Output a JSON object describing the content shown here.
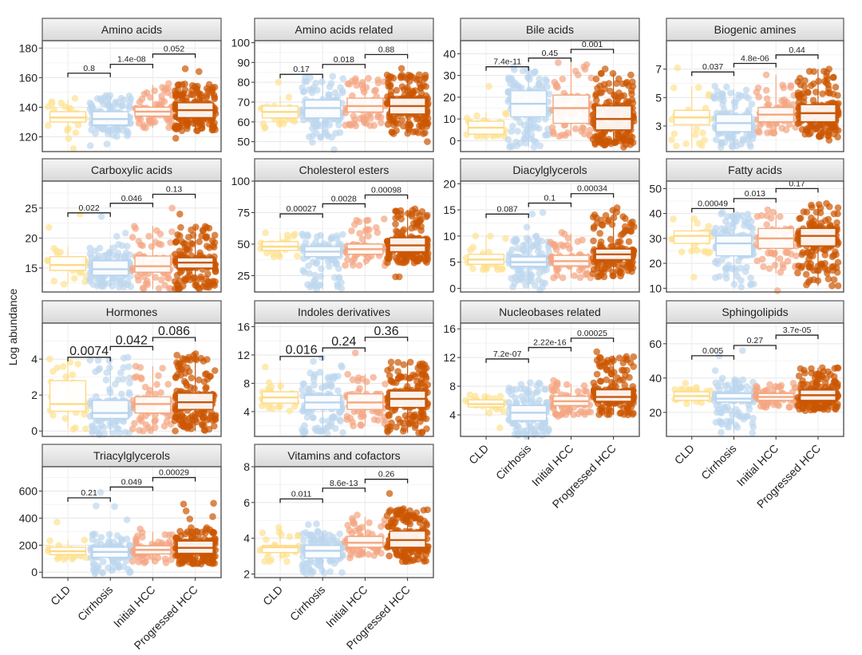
{
  "chart_data": {
    "type": "boxplot",
    "title": "",
    "ylabel": "Log abundance",
    "xlabel": "",
    "groups": [
      "CLD",
      "Cirrhosis",
      "Initial HCC",
      "Progressed HCC"
    ],
    "group_colors": [
      "#fee391",
      "#bdd7ee",
      "#f4a582",
      "#cc5500"
    ],
    "grid": true,
    "panels": [
      {
        "title": "Amino acids",
        "ylim": [
          110,
          185
        ],
        "yticks": [
          120,
          140,
          160,
          180
        ],
        "boxes": [
          {
            "q1": 130,
            "median": 133,
            "q3": 137,
            "min": 122,
            "max": 145
          },
          {
            "q1": 128,
            "median": 132,
            "q3": 137,
            "min": 120,
            "max": 148
          },
          {
            "q1": 134,
            "median": 137,
            "q3": 140,
            "min": 126,
            "max": 155
          },
          {
            "q1": 133,
            "median": 138,
            "q3": 143,
            "min": 124,
            "max": 156
          }
        ],
        "range": [
          [
            112,
            146
          ],
          [
            114,
            148
          ],
          [
            126,
            156
          ],
          [
            119,
            166
          ]
        ],
        "pvalues": [
          {
            "label": "0.8",
            "level": 163
          },
          {
            "label": "1.4e-08",
            "level": 169
          },
          {
            "label": "0.052",
            "level": 176
          }
        ]
      },
      {
        "title": "Amino acids related",
        "ylim": [
          45,
          101
        ],
        "yticks": [
          50,
          60,
          70,
          80,
          90,
          100
        ],
        "boxes": [
          {
            "q1": 62,
            "median": 65,
            "q3": 68,
            "min": 57,
            "max": 73
          },
          {
            "q1": 62,
            "median": 67,
            "q3": 71,
            "min": 52,
            "max": 83
          },
          {
            "q1": 65,
            "median": 68,
            "q3": 72,
            "min": 58,
            "max": 82
          },
          {
            "q1": 64,
            "median": 68,
            "q3": 72,
            "min": 54,
            "max": 84
          }
        ],
        "range": [
          [
            57,
            80
          ],
          [
            46,
            83
          ],
          [
            58,
            82
          ],
          [
            50,
            87
          ]
        ],
        "pvalues": [
          {
            "label": "0.17",
            "level": 84
          },
          {
            "label": "0.018",
            "level": 89
          },
          {
            "label": "0.88",
            "level": 94
          }
        ]
      },
      {
        "title": "Bile acids",
        "ylim": [
          -5,
          46
        ],
        "yticks": [
          0,
          10,
          20,
          30,
          40
        ],
        "boxes": [
          {
            "q1": 3,
            "median": 6,
            "q3": 9,
            "min": 2,
            "max": 13
          },
          {
            "q1": 11,
            "median": 17,
            "q3": 23,
            "min": -3,
            "max": 33
          },
          {
            "q1": 8,
            "median": 15,
            "q3": 21,
            "min": 2,
            "max": 36
          },
          {
            "q1": 5,
            "median": 10,
            "q3": 16,
            "min": -2,
            "max": 31
          }
        ],
        "range": [
          [
            2,
            25
          ],
          [
            -3,
            34
          ],
          [
            2,
            35
          ],
          [
            -3,
            33
          ]
        ],
        "pvalues": [
          {
            "label": "7.4e-11",
            "level": 34
          },
          {
            "label": "0.45",
            "level": 38
          },
          {
            "label": "0.001",
            "level": 42
          }
        ]
      },
      {
        "title": "Biogenic amines",
        "ylim": [
          1.2,
          9
        ],
        "yticks": [
          3,
          5,
          7
        ],
        "boxes": [
          {
            "q1": 3.1,
            "median": 3.6,
            "q3": 4.1,
            "min": 1.5,
            "max": 5.8
          },
          {
            "q1": 2.6,
            "median": 3.2,
            "q3": 3.8,
            "min": 1.5,
            "max": 5.6
          },
          {
            "q1": 3.3,
            "median": 3.8,
            "q3": 4.3,
            "min": 2.5,
            "max": 6.6
          },
          {
            "q1": 3.3,
            "median": 3.9,
            "q3": 4.5,
            "min": 2.2,
            "max": 7.0
          }
        ],
        "range": [
          [
            1.6,
            7.1
          ],
          [
            1.5,
            5.8
          ],
          [
            2.5,
            6.6
          ],
          [
            2.0,
            7.0
          ]
        ],
        "pvalues": [
          {
            "label": "0.037",
            "level": 6.8
          },
          {
            "label": "4.8e-06",
            "level": 7.4
          },
          {
            "label": "0.44",
            "level": 8.0
          }
        ]
      },
      {
        "title": "Carboxylic acids",
        "ylim": [
          11,
          29.5
        ],
        "yticks": [
          15,
          20,
          25
        ],
        "boxes": [
          {
            "q1": 14.6,
            "median": 15.5,
            "q3": 16.9,
            "min": 12.3,
            "max": 18.5
          },
          {
            "q1": 13.8,
            "median": 14.8,
            "q3": 16.2,
            "min": 11.8,
            "max": 18.8
          },
          {
            "q1": 14.3,
            "median": 15.3,
            "q3": 17.0,
            "min": 11.5,
            "max": 22
          },
          {
            "q1": 15.0,
            "median": 15.9,
            "q3": 16.7,
            "min": 11.5,
            "max": 22
          }
        ],
        "range": [
          [
            12.3,
            24
          ],
          [
            11.8,
            23.6
          ],
          [
            11.5,
            25
          ],
          [
            11.5,
            24
          ]
        ],
        "pvalues": [
          {
            "label": "0.022",
            "level": 24.2
          },
          {
            "label": "0.046",
            "level": 25.8
          },
          {
            "label": "0.13",
            "level": 27.3
          }
        ]
      },
      {
        "title": "Cholesterol esters",
        "ylim": [
          12,
          100
        ],
        "yticks": [
          25,
          50,
          75,
          100
        ],
        "boxes": [
          {
            "q1": 45,
            "median": 48,
            "q3": 52,
            "min": 40,
            "max": 59
          },
          {
            "q1": 40,
            "median": 44,
            "q3": 48,
            "min": 14,
            "max": 58
          },
          {
            "q1": 42,
            "median": 46,
            "q3": 50,
            "min": 33,
            "max": 70
          },
          {
            "q1": 44,
            "median": 49,
            "q3": 55,
            "min": 35,
            "max": 77
          }
        ],
        "range": [
          [
            40,
            59
          ],
          [
            14,
            58
          ],
          [
            33,
            70
          ],
          [
            24,
            78
          ]
        ],
        "pvalues": [
          {
            "label": "0.00027",
            "level": 74
          },
          {
            "label": "0.0028",
            "level": 82
          },
          {
            "label": "0.00098",
            "level": 89
          }
        ]
      },
      {
        "title": "Diacylglycerols",
        "ylim": [
          -0.7,
          20.5
        ],
        "yticks": [
          0,
          5,
          10,
          15,
          20
        ],
        "boxes": [
          {
            "q1": 4.6,
            "median": 5.5,
            "q3": 6.5,
            "min": 3.6,
            "max": 10
          },
          {
            "q1": 4.2,
            "median": 5.0,
            "q3": 6.0,
            "min": 0,
            "max": 10
          },
          {
            "q1": 4.3,
            "median": 5.2,
            "q3": 6.3,
            "min": 2,
            "max": 10.5
          },
          {
            "q1": 5.5,
            "median": 6.5,
            "q3": 7.5,
            "min": 2.2,
            "max": 15
          }
        ],
        "range": [
          [
            3.6,
            10
          ],
          [
            -0.3,
            14.5
          ],
          [
            2,
            10.7
          ],
          [
            2.2,
            15.4
          ]
        ],
        "pvalues": [
          {
            "label": "0.087",
            "level": 14.2
          },
          {
            "label": "0.1",
            "level": 16.3
          },
          {
            "label": "0.00034",
            "level": 18.1
          }
        ]
      },
      {
        "title": "Fatty acids",
        "ylim": [
          8.5,
          53
        ],
        "yticks": [
          10,
          20,
          30,
          40,
          50
        ],
        "boxes": [
          {
            "q1": 28,
            "median": 31,
            "q3": 33,
            "min": 24,
            "max": 38
          },
          {
            "q1": 23,
            "median": 28,
            "q3": 31,
            "min": 11,
            "max": 40
          },
          {
            "q1": 26,
            "median": 30,
            "q3": 34,
            "min": 16,
            "max": 41
          },
          {
            "q1": 27,
            "median": 31,
            "q3": 34,
            "min": 11,
            "max": 44
          }
        ],
        "range": [
          [
            14.5,
            38
          ],
          [
            10.5,
            40.5
          ],
          [
            9,
            41.5
          ],
          [
            11,
            44
          ]
        ],
        "pvalues": [
          {
            "label": "0.00049",
            "level": 42
          },
          {
            "label": "0.013",
            "level": 46
          },
          {
            "label": "0.17",
            "level": 50
          }
        ]
      },
      {
        "title": "Hormones",
        "ylim": [
          -0.3,
          6.0
        ],
        "yticks": [
          0,
          2,
          4
        ],
        "boxes": [
          {
            "q1": 1.1,
            "median": 1.5,
            "q3": 2.8,
            "min": 0.1,
            "max": 4
          },
          {
            "q1": 0.7,
            "median": 1.0,
            "q3": 1.7,
            "min": -0.2,
            "max": 4
          },
          {
            "q1": 1.0,
            "median": 1.5,
            "q3": 1.9,
            "min": 0,
            "max": 3.6
          },
          {
            "q1": 1.2,
            "median": 1.6,
            "q3": 2.1,
            "min": 0,
            "max": 4.3
          }
        ],
        "range": [
          [
            0.1,
            4
          ],
          [
            -0.2,
            4.1
          ],
          [
            0,
            3.6
          ],
          [
            0,
            4.3
          ]
        ],
        "pvalues": [
          {
            "label": "0.0074",
            "level": 4.1
          },
          {
            "label": "0.042",
            "level": 4.7
          },
          {
            "label": "0.086",
            "level": 5.2
          }
        ]
      },
      {
        "title": "Indoles derivatives",
        "ylim": [
          0.5,
          16.5
        ],
        "yticks": [
          4,
          8,
          12,
          16
        ],
        "boxes": [
          {
            "q1": 5.2,
            "median": 6.0,
            "q3": 6.8,
            "min": 4.1,
            "max": 8.5
          },
          {
            "q1": 4.3,
            "median": 5.3,
            "q3": 6.3,
            "min": 1.0,
            "max": 9.5
          },
          {
            "q1": 4.3,
            "median": 5.3,
            "q3": 6.5,
            "min": 2.0,
            "max": 9.3
          },
          {
            "q1": 4.6,
            "median": 5.8,
            "q3": 6.9,
            "min": 1.0,
            "max": 11
          }
        ],
        "range": [
          [
            4.1,
            10.3
          ],
          [
            0.8,
            11.6
          ],
          [
            2.0,
            12.3
          ],
          [
            1.0,
            11
          ]
        ],
        "pvalues": [
          {
            "label": "0.016",
            "level": 11.8
          },
          {
            "label": "0.24",
            "level": 13.0
          },
          {
            "label": "0.36",
            "level": 14.5
          }
        ]
      },
      {
        "title": "Nucleobases related",
        "ylim": [
          1.0,
          16.8
        ],
        "yticks": [
          4,
          8,
          12,
          16
        ],
        "boxes": [
          {
            "q1": 5.1,
            "median": 5.5,
            "q3": 6.1,
            "min": 4.0,
            "max": 6.8
          },
          {
            "q1": 3.2,
            "median": 4.3,
            "q3": 5.3,
            "min": 1.1,
            "max": 8.5
          },
          {
            "q1": 5.3,
            "median": 5.9,
            "q3": 6.6,
            "min": 4.0,
            "max": 8.3
          },
          {
            "q1": 5.9,
            "median": 6.5,
            "q3": 7.5,
            "min": 4.0,
            "max": 12.3
          }
        ],
        "range": [
          [
            2.2,
            6.8
          ],
          [
            1.0,
            8.5
          ],
          [
            3.8,
            8.8
          ],
          [
            4.0,
            12.8
          ]
        ],
        "pvalues": [
          {
            "label": "7.2e-07",
            "level": 11.8
          },
          {
            "label": "2.22e-16",
            "level": 13.4
          },
          {
            "label": "0.00025",
            "level": 14.7
          }
        ]
      },
      {
        "title": "Sphingolipids",
        "ylim": [
          6,
          72
        ],
        "yticks": [
          20,
          40,
          60
        ],
        "boxes": [
          {
            "q1": 27,
            "median": 29.5,
            "q3": 32,
            "min": 25,
            "max": 35
          },
          {
            "q1": 26,
            "median": 28,
            "q3": 31,
            "min": 8,
            "max": 40
          },
          {
            "q1": 27,
            "median": 29,
            "q3": 31,
            "min": 23,
            "max": 37
          },
          {
            "q1": 27,
            "median": 30,
            "q3": 33,
            "min": 21,
            "max": 46
          }
        ],
        "range": [
          [
            25,
            37
          ],
          [
            8,
            56
          ],
          [
            23,
            37
          ],
          [
            21,
            46
          ]
        ],
        "pvalues": [
          {
            "label": "0.005",
            "level": 53
          },
          {
            "label": "0.27",
            "level": 59
          },
          {
            "label": "3.7e-05",
            "level": 65
          }
        ]
      },
      {
        "title": "Triacylglycerols",
        "ylim": [
          -40,
          780
        ],
        "yticks": [
          0,
          200,
          400,
          600
        ],
        "boxes": [
          {
            "q1": 130,
            "median": 155,
            "q3": 185,
            "min": 95,
            "max": 240
          },
          {
            "q1": 110,
            "median": 150,
            "q3": 185,
            "min": -10,
            "max": 290
          },
          {
            "q1": 135,
            "median": 165,
            "q3": 195,
            "min": 70,
            "max": 300
          },
          {
            "q1": 140,
            "median": 180,
            "q3": 230,
            "min": 60,
            "max": 330
          }
        ],
        "range": [
          [
            95,
            370
          ],
          [
            -10,
            590
          ],
          [
            70,
            320
          ],
          [
            60,
            510
          ]
        ],
        "pvalues": [
          {
            "label": "0.21",
            "level": 550
          },
          {
            "label": "0.049",
            "level": 630
          },
          {
            "label": "0.00029",
            "level": 700
          }
        ]
      },
      {
        "title": "Vitamins and cofactors",
        "ylim": [
          1.8,
          8.0
        ],
        "yticks": [
          2,
          4,
          6,
          8
        ],
        "boxes": [
          {
            "q1": 3.2,
            "median": 3.5,
            "q3": 3.6,
            "min": 2.7,
            "max": 4.5
          },
          {
            "q1": 2.9,
            "median": 3.3,
            "q3": 3.6,
            "min": 2.0,
            "max": 4.4
          },
          {
            "q1": 3.5,
            "median": 3.75,
            "q3": 4.1,
            "min": 3.0,
            "max": 5.2
          },
          {
            "q1": 3.5,
            "median": 3.9,
            "q3": 4.4,
            "min": 2.7,
            "max": 5.6
          }
        ],
        "range": [
          [
            2.7,
            4.6
          ],
          [
            2.0,
            4.8
          ],
          [
            2.9,
            5.3
          ],
          [
            2.7,
            6.5
          ]
        ],
        "pvalues": [
          {
            "label": "0.011",
            "level": 6.2
          },
          {
            "label": "8.6e-13",
            "level": 6.8
          },
          {
            "label": "0.26",
            "level": 7.3
          }
        ]
      }
    ]
  }
}
